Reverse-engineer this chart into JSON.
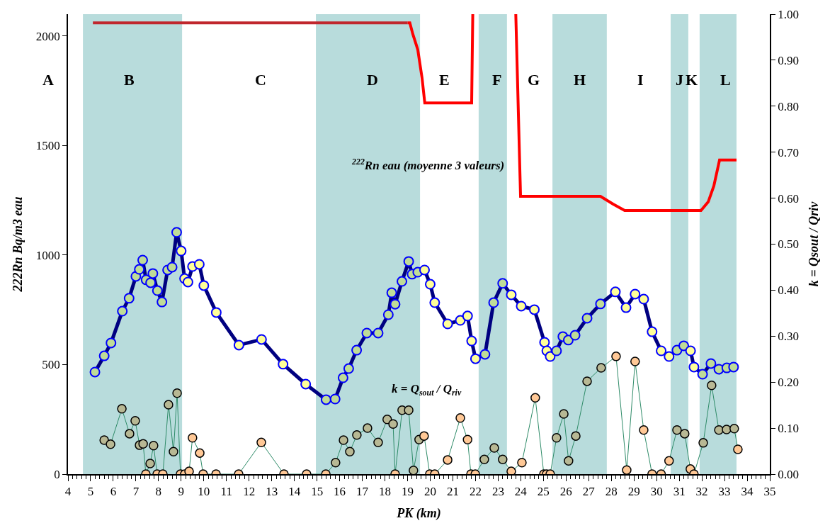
{
  "chart_data": {
    "type": "line",
    "xlabel": "PK (km)",
    "ylabel": "222Rn Bq/m3 eau",
    "y2label": "k = Qsout / Qriv",
    "xlim": [
      4,
      35
    ],
    "xticks": [
      4,
      5,
      6,
      7,
      8,
      9,
      10,
      11,
      12,
      13,
      14,
      15,
      16,
      17,
      18,
      19,
      20,
      21,
      22,
      23,
      24,
      25,
      26,
      27,
      28,
      29,
      30,
      31,
      32,
      33,
      34,
      35
    ],
    "ylim": [
      0,
      2100
    ],
    "yticks": [
      0,
      500,
      1000,
      1500,
      2000
    ],
    "y2lim": [
      0,
      1
    ],
    "y2ticks": [
      {
        "value": 0,
        "label": "0.00"
      },
      {
        "value": 0.1,
        "label": "0.10"
      },
      {
        "value": 0.2,
        "label": "0.20"
      },
      {
        "value": 0.3,
        "label": "0.30"
      },
      {
        "value": 0.4,
        "label": "0.40"
      },
      {
        "value": 0.5,
        "label": "0.50"
      },
      {
        "value": 0.6,
        "label": "0.60"
      },
      {
        "value": 0.7,
        "label": "0.70"
      },
      {
        "value": 0.8,
        "label": "0.80"
      },
      {
        "value": 0.9,
        "label": "0.90"
      },
      {
        "value": 1,
        "label": "1.00"
      }
    ],
    "grid": false,
    "marker": "circle",
    "bands": [
      {
        "axis": "x",
        "from": 4.66,
        "to": 9.04,
        "color": "#b8dcdc"
      },
      {
        "axis": "x",
        "from": 14.95,
        "to": 19.55,
        "color": "#b8dcdc"
      },
      {
        "axis": "x",
        "from": 22.14,
        "to": 23.39,
        "color": "#b8dcdc"
      },
      {
        "axis": "x",
        "from": 25.4,
        "to": 27.8,
        "color": "#b8dcdc"
      },
      {
        "axis": "x",
        "from": 30.62,
        "to": 31.4,
        "color": "#b8dcdc"
      },
      {
        "axis": "x",
        "from": 31.9,
        "to": 33.53,
        "color": "#b8dcdc"
      }
    ],
    "annotations": [
      "A",
      "B",
      "C",
      "D",
      "E",
      "F",
      "G",
      "H",
      "I",
      "J",
      "K",
      "L",
      "$^{222}$Rn eau (moyenne 3 valeurs)",
      "k = Q$_{sout}$ / Q$_{riv}$"
    ],
    "series": [
      {
        "color": "#000080",
        "x": [
          5.19,
          5.6,
          5.9,
          6.4,
          6.7,
          7.0,
          7.15,
          7.3,
          7.45,
          7.65,
          7.75,
          7.95,
          8.15,
          8.4,
          8.6,
          8.8,
          9.0,
          9.15,
          9.3,
          9.5,
          9.8,
          10.0,
          10.55,
          11.55,
          12.55,
          13.5,
          14.5,
          15.4,
          15.8,
          16.15,
          16.4,
          16.75,
          17.2,
          17.7,
          18.15,
          18.3,
          18.45,
          18.75,
          19.05,
          19.2,
          19.45,
          19.75,
          20.0,
          20.2,
          20.77,
          21.33,
          21.65,
          21.83,
          22.0,
          22.42,
          22.8,
          23.2,
          23.58,
          24.02,
          24.6,
          25.05,
          25.15,
          25.3,
          25.58,
          25.86,
          26.1,
          26.4,
          26.93,
          27.52,
          28.18,
          28.65,
          29.05,
          29.43,
          29.8,
          30.2,
          30.55,
          30.9,
          31.2,
          31.5,
          31.65,
          32.03,
          32.4,
          32.75,
          33.1,
          33.4
        ],
        "values": [
          466,
          540,
          599,
          744,
          803,
          903,
          935,
          977,
          887,
          874,
          916,
          838,
          786,
          932,
          945,
          1104,
          1019,
          893,
          877,
          948,
          958,
          861,
          738,
          589,
          615,
          502,
          411,
          340,
          343,
          440,
          482,
          566,
          644,
          644,
          728,
          828,
          776,
          880,
          971,
          913,
          922,
          932,
          867,
          783,
          686,
          702,
          722,
          608,
          527,
          547,
          783,
          871,
          819,
          767,
          751,
          602,
          563,
          537,
          563,
          628,
          612,
          634,
          712,
          777,
          832,
          760,
          822,
          799,
          650,
          563,
          537,
          566,
          586,
          563,
          489,
          456,
          505,
          479,
          485,
          489
        ],
        "colors": [
          "#bfdc98",
          "#bfdc98",
          "#bfdc98",
          "#bfdc98",
          "#bfdc98",
          "#bfdc98",
          "#bfdc98",
          "#bfdc98",
          "#bfdc98",
          "#bfdc98",
          "#bfdc98",
          "#bfdc98",
          "#bfdc98",
          "#bfdc98",
          "#bfdc98",
          "#bfdc98",
          "#ffff99",
          "#ffff99",
          "#ffff99",
          "#ffff99",
          "#ffff99",
          "#ffff99",
          "#ffff99",
          "#ffff99",
          "#ffff99",
          "#ffff99",
          "#ffff99",
          "#bfdc98",
          "#bfdc98",
          "#bfdc98",
          "#bfdc98",
          "#bfdc98",
          "#bfdc98",
          "#bfdc98",
          "#bfdc98",
          "#bfdc98",
          "#bfdc98",
          "#bfdc98",
          "#bfdc98",
          "#bfdc98",
          "#bfdc98",
          "#ffff99",
          "#ffff99",
          "#ffff99",
          "#ffff99",
          "#ffff99",
          "#ffff99",
          "#ffff99",
          "#ffff99",
          "#bfdc98",
          "#bfdc98",
          "#bfdc98",
          "#ffff99",
          "#ffff99",
          "#ffff99",
          "#ffff99",
          "#ffff99",
          "#ffff99",
          "#bfdc98",
          "#bfdc98",
          "#bfdc98",
          "#bfdc98",
          "#bfdc98",
          "#bfdc98",
          "#ffff99",
          "#ffff99",
          "#ffff99",
          "#ffff99",
          "#ffff99",
          "#ffff99",
          "#ffff99",
          "#bfdc98",
          "#bfdc98",
          "#ffff99",
          "#ffff99",
          "#bfdc98",
          "#bfdc98",
          "#bfdc98",
          "#bfdc98",
          "#bfdc98"
        ]
      },
      {
        "color": "#2e8b68",
        "axis": "y2",
        "x": [
          5.6,
          5.88,
          6.38,
          6.72,
          6.97,
          7.16,
          7.32,
          7.44,
          7.63,
          7.78,
          7.94,
          8.19,
          8.44,
          8.66,
          8.82,
          8.97,
          9.16,
          9.35,
          9.5,
          9.82,
          9.97,
          10.54,
          11.54,
          12.54,
          13.54,
          14.54,
          15.39,
          15.82,
          16.17,
          16.45,
          16.76,
          17.23,
          17.7,
          18.1,
          18.36,
          18.45,
          18.76,
          19.05,
          19.26,
          19.51,
          19.73,
          19.98,
          20.2,
          20.77,
          21.33,
          21.65,
          21.8,
          21.99,
          22.39,
          22.83,
          23.2,
          23.58,
          24.05,
          24.64,
          25.02,
          25.14,
          25.3,
          25.58,
          25.9,
          26.11,
          26.43,
          26.93,
          27.55,
          28.21,
          28.68,
          29.05,
          29.43,
          29.8,
          30.2,
          30.55,
          30.9,
          31.24,
          31.49,
          31.65,
          32.06,
          32.43,
          32.75,
          33.09,
          33.43,
          33.59
        ],
        "values": [
          0.074,
          0.065,
          0.142,
          0.088,
          0.116,
          0.063,
          0.066,
          0,
          0.023,
          0.062,
          0,
          0,
          0.151,
          0.049,
          0.176,
          0,
          0,
          0.006,
          0.079,
          0.046,
          0,
          0,
          0,
          0.069,
          0,
          0,
          0,
          0.025,
          0.074,
          0.049,
          0.085,
          0.1,
          0.069,
          0.119,
          0.109,
          0,
          0.139,
          0.139,
          0.008,
          0.075,
          0.083,
          0,
          0,
          0.031,
          0.122,
          0.075,
          0,
          0,
          0.032,
          0.057,
          0.032,
          0.006,
          0.025,
          0.166,
          0,
          0,
          0,
          0.079,
          0.131,
          0.029,
          0.083,
          0.202,
          0.231,
          0.256,
          0.009,
          0.245,
          0.096,
          0,
          0,
          0.029,
          0.096,
          0.088,
          0.011,
          0,
          0.068,
          0.193,
          0.096,
          0.097,
          0.099,
          0.054
        ],
        "colors": [
          "#b8b894",
          "#b8b894",
          "#b8b894",
          "#b8b894",
          "#b8b894",
          "#b8b894",
          "#b8b894",
          "#ffc896",
          "#b8b894",
          "#b8b894",
          "#ffc896",
          "#ffc896",
          "#b8b894",
          "#b8b894",
          "#b8b894",
          "#ffc896",
          "#ffc896",
          "#ffc896",
          "#ffc896",
          "#ffc896",
          "#ffc896",
          "#ffc896",
          "#ffc896",
          "#ffc896",
          "#ffc896",
          "#ffc896",
          "#ffc896",
          "#b8b894",
          "#b8b894",
          "#b8b894",
          "#b8b894",
          "#b8b894",
          "#b8b894",
          "#b8b894",
          "#b8b894",
          "#ffc896",
          "#b8b894",
          "#b8b894",
          "#b8b894",
          "#b8b894",
          "#ffc896",
          "#ffc896",
          "#ffc896",
          "#ffc896",
          "#ffc896",
          "#ffc896",
          "#ffc896",
          "#ffc896",
          "#b8b894",
          "#b8b894",
          "#b8b894",
          "#ffc896",
          "#ffc896",
          "#ffc896",
          "#ffc896",
          "#ffc896",
          "#ffc896",
          "#b8b894",
          "#b8b894",
          "#b8b894",
          "#b8b894",
          "#b8b894",
          "#b8b894",
          "#ffc896",
          "#ffc896",
          "#ffc896",
          "#ffc896",
          "#ffc896",
          "#ffc896",
          "#ffc896",
          "#b8b894",
          "#b8b894",
          "#ffc896",
          "#ffc896",
          "#b8b894",
          "#b8b894",
          "#b8b894",
          "#b8b894",
          "#b8b894",
          "#ffc896"
        ]
      },
      {
        "color": "#c0272d",
        "axis": "y2",
        "marker": "none",
        "x": [
          5.1,
          19.0
        ],
        "values": [
          0.981,
          0.981
        ]
      },
      {
        "color": "#ff0000",
        "axis": "y2",
        "marker": "none",
        "x": [
          19.0,
          19.1,
          19.23,
          19.45,
          19.64,
          19.76,
          21.83,
          21.88,
          22.8,
          23.78,
          23.99,
          27.52,
          28.08,
          28.59,
          31.96,
          32.28,
          32.53,
          32.78,
          33.53
        ],
        "values": [
          0.981,
          0.981,
          0.957,
          0.923,
          0.861,
          0.807,
          0.807,
          1.0,
          null,
          1.0,
          0.604,
          0.604,
          0.587,
          0.573,
          0.573,
          0.592,
          0.627,
          0.683,
          0.683
        ]
      }
    ]
  }
}
